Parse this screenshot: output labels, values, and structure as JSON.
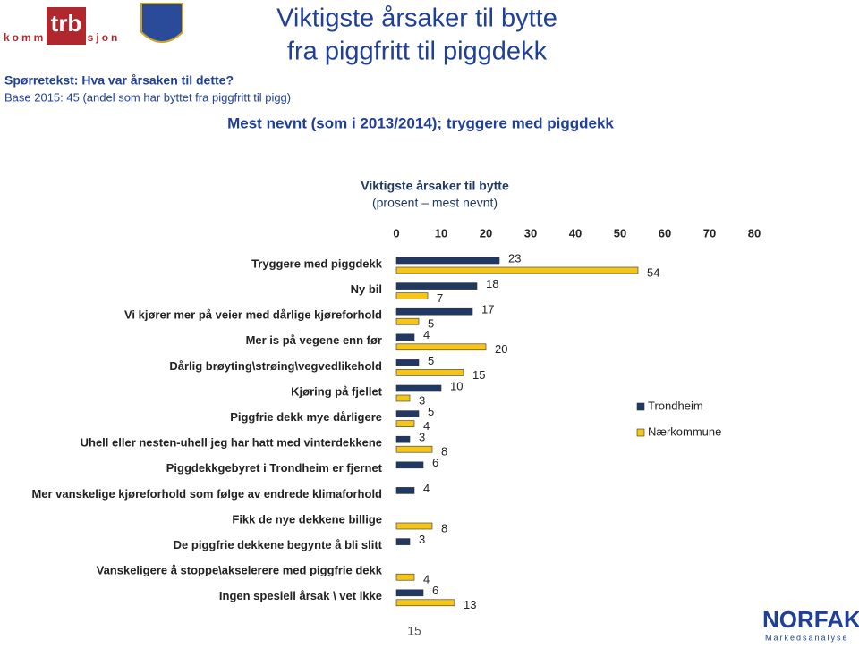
{
  "logo": {
    "name": "trb",
    "tagline": "kommunikasjon"
  },
  "question": "Spørretekst: Hva var årsaken til dette?",
  "base": "Base 2015: 45 (andel som har byttet fra piggfritt til pigg)",
  "title_lines": [
    "Viktigste årsaker til bytte",
    "fra piggfritt til piggdekk"
  ],
  "subtitle": "Mest nevnt (som i 2013/2014); tryggere med piggdekk",
  "page_number": "15",
  "brand": {
    "name": "NORFAKTA",
    "tagline": "Markedsanalyse"
  },
  "chart_data": {
    "type": "bar",
    "orientation": "horizontal",
    "title": "Viktigste årsaker til bytte",
    "subtitle": "(prosent – mest nevnt)",
    "categories": [
      "Tryggere med piggdekk",
      "Ny bil",
      "Vi kjører mer på veier med dårlige kjøreforhold",
      "Mer is på vegene enn før",
      "Dårlig brøyting\\strøing\\vegvedlikehold",
      "Kjøring på fjellet",
      "Piggfrie dekk mye dårligere",
      "Uhell eller nesten-uhell jeg har hatt med vinterdekkene",
      "Piggdekkgebyret i Trondheim er fjernet",
      "Mer vanskelige kjøreforhold som følge av endrede klimaforhold",
      "Fikk de nye dekkene billige",
      "De piggfrie dekkene begynte å bli slitt",
      "Vanskeligere å stoppe\\akselerere med piggfrie dekk",
      "Ingen spesiell årsak \\ vet ikke"
    ],
    "series": [
      {
        "name": "Trondheim",
        "color": "#1f3864",
        "values": [
          23,
          18,
          17,
          4,
          5,
          10,
          5,
          3,
          6,
          4,
          null,
          3,
          null,
          6
        ]
      },
      {
        "name": "Nærkommune",
        "color": "#f5c518",
        "values": [
          54,
          7,
          5,
          20,
          15,
          3,
          4,
          8,
          null,
          null,
          8,
          null,
          4,
          13
        ]
      }
    ],
    "xlim": [
      0,
      80
    ],
    "xticks": [
      0,
      10,
      20,
      30,
      40,
      50,
      60,
      70,
      80
    ],
    "grid": false,
    "legend": "right"
  }
}
